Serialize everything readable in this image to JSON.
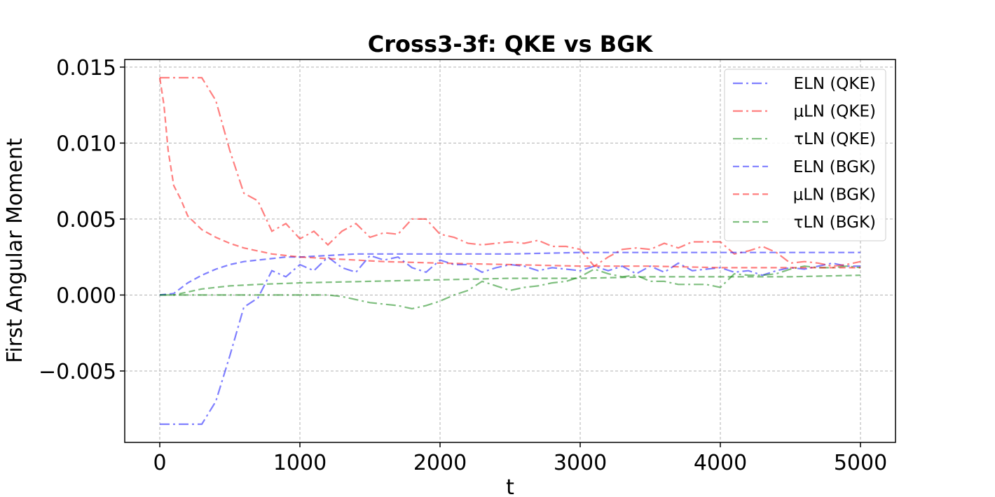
{
  "chart_data": {
    "type": "line",
    "title": "Cross3-3f: QKE vs BGK",
    "xlabel": "t",
    "ylabel": "First Angular Moment",
    "xlim": [
      -250,
      5250
    ],
    "ylim": [
      -0.0097,
      0.0155
    ],
    "x_ticks": [
      0,
      1000,
      2000,
      3000,
      4000,
      5000
    ],
    "x_tick_labels": [
      "0",
      "1000",
      "2000",
      "3000",
      "4000",
      "5000"
    ],
    "y_ticks": [
      -0.005,
      0.0,
      0.005,
      0.01,
      0.015
    ],
    "y_tick_labels": [
      "−0.005",
      "0.000",
      "0.005",
      "0.010",
      "0.015"
    ],
    "grid": true,
    "legend_position": "top-right",
    "series": [
      {
        "name": "ELN (QKE)",
        "color": "#0000ff",
        "style": "dashdot",
        "x": [
          0,
          100,
          200,
          300,
          400,
          500,
          600,
          700,
          800,
          900,
          1000,
          1100,
          1200,
          1300,
          1400,
          1500,
          1600,
          1700,
          1800,
          1900,
          2000,
          2100,
          2200,
          2300,
          2400,
          2500,
          2600,
          2700,
          2800,
          2900,
          3000,
          3100,
          3200,
          3300,
          3400,
          3500,
          3600,
          3700,
          3800,
          3900,
          4000,
          4100,
          4200,
          4300,
          4400,
          4500,
          4600,
          4700,
          4800,
          4900,
          5000
        ],
        "y": [
          -0.0085,
          -0.0085,
          -0.0085,
          -0.0085,
          -0.007,
          -0.004,
          -0.0008,
          -0.0002,
          0.0016,
          0.0012,
          0.002,
          0.0016,
          0.0025,
          0.0018,
          0.0015,
          0.0026,
          0.0023,
          0.0025,
          0.0018,
          0.0015,
          0.0023,
          0.002,
          0.002,
          0.0015,
          0.0018,
          0.002,
          0.0019,
          0.0016,
          0.0018,
          0.0017,
          0.0016,
          0.0019,
          0.0016,
          0.0019,
          0.0014,
          0.0019,
          0.0015,
          0.0021,
          0.0016,
          0.0017,
          0.0018,
          0.0015,
          0.0016,
          0.0013,
          0.0016,
          0.0018,
          0.0017,
          0.0019,
          0.0021,
          0.0019,
          0.0019
        ]
      },
      {
        "name": "μLN (QKE)",
        "color": "#ff0000",
        "style": "dashdot",
        "x": [
          0,
          100,
          200,
          300,
          400,
          500,
          600,
          700,
          800,
          900,
          1000,
          1100,
          1200,
          1300,
          1400,
          1500,
          1600,
          1700,
          1800,
          1900,
          2000,
          2100,
          2200,
          2300,
          2400,
          2500,
          2600,
          2700,
          2800,
          2900,
          3000,
          3100,
          3200,
          3300,
          3400,
          3500,
          3600,
          3700,
          3800,
          3900,
          4000,
          4100,
          4200,
          4300,
          4400,
          4500,
          4600,
          4700,
          4800,
          4900,
          5000
        ],
        "y": [
          0.0143,
          0.0143,
          0.0143,
          0.0143,
          0.0128,
          0.0095,
          0.0067,
          0.0062,
          0.0042,
          0.0047,
          0.0037,
          0.0042,
          0.0033,
          0.0042,
          0.0047,
          0.0038,
          0.0041,
          0.004,
          0.005,
          0.005,
          0.004,
          0.0038,
          0.0034,
          0.0033,
          0.0034,
          0.0035,
          0.0034,
          0.0036,
          0.0032,
          0.0032,
          0.003,
          0.0019,
          0.0025,
          0.003,
          0.0031,
          0.003,
          0.0034,
          0.0031,
          0.0035,
          0.0035,
          0.0035,
          0.0027,
          0.0029,
          0.0032,
          0.0028,
          0.0021,
          0.0022,
          0.0021,
          0.0019,
          0.002,
          0.0022
        ]
      },
      {
        "name": "τLN (QKE)",
        "color": "#008000",
        "style": "dashdot",
        "x": [
          0,
          100,
          200,
          300,
          400,
          500,
          600,
          700,
          800,
          900,
          1000,
          1100,
          1200,
          1300,
          1400,
          1500,
          1600,
          1700,
          1800,
          1900,
          2000,
          2100,
          2200,
          2300,
          2400,
          2500,
          2600,
          2700,
          2800,
          2900,
          3000,
          3100,
          3200,
          3300,
          3400,
          3500,
          3600,
          3700,
          3800,
          3900,
          4000,
          4100,
          4200,
          4300,
          4400,
          4500,
          4600,
          4700,
          4800,
          4900,
          5000
        ],
        "y": [
          0.0,
          0.0,
          0.0,
          0.0,
          0.0,
          0.0,
          0.0,
          0.0,
          0.0,
          0.0,
          0.0,
          0.0,
          0.0,
          -0.0001,
          -0.0003,
          -0.0005,
          -0.0006,
          -0.0007,
          -0.0009,
          -0.0007,
          -0.0004,
          0.0,
          0.0003,
          0.0009,
          0.0006,
          0.0003,
          0.0005,
          0.0006,
          0.0008,
          0.0009,
          0.0012,
          0.0017,
          0.0014,
          0.0012,
          0.0013,
          0.0009,
          0.0009,
          0.0007,
          0.0007,
          0.0007,
          0.0005,
          0.0014,
          0.0013,
          0.0013,
          0.0014,
          0.0017,
          0.0019,
          0.0018,
          0.0018,
          0.0019,
          0.0018
        ]
      },
      {
        "name": "ELN (BGK)",
        "color": "#0000ff",
        "style": "dashed",
        "x": [
          0,
          100,
          200,
          300,
          400,
          500,
          600,
          700,
          800,
          900,
          1000,
          1200,
          1400,
          1600,
          1800,
          2000,
          2500,
          3000,
          3500,
          4000,
          4500,
          5000
        ],
        "y": [
          0.0,
          0.0001,
          0.0008,
          0.0013,
          0.0017,
          0.002,
          0.0022,
          0.0023,
          0.0024,
          0.0025,
          0.0025,
          0.0026,
          0.0027,
          0.0027,
          0.0027,
          0.0027,
          0.0027,
          0.0028,
          0.0028,
          0.0028,
          0.0028,
          0.0028
        ]
      },
      {
        "name": "μLN (BGK)",
        "color": "#ff0000",
        "style": "dashed",
        "x": [
          0,
          30,
          60,
          100,
          150,
          200,
          300,
          400,
          500,
          600,
          700,
          800,
          1000,
          1200,
          1400,
          1600,
          2000,
          2500,
          3000,
          3500,
          4000,
          4500,
          5000
        ],
        "y": [
          0.0143,
          0.0125,
          0.0095,
          0.0072,
          0.0063,
          0.0052,
          0.0043,
          0.0038,
          0.0034,
          0.0031,
          0.0029,
          0.0027,
          0.0025,
          0.0024,
          0.0023,
          0.0022,
          0.0021,
          0.002,
          0.0019,
          0.0019,
          0.0018,
          0.0018,
          0.0018
        ]
      },
      {
        "name": "τLN (BGK)",
        "color": "#008000",
        "style": "dashed",
        "x": [
          0,
          100,
          200,
          300,
          400,
          500,
          700,
          1000,
          1500,
          2000,
          2500,
          3000,
          3500,
          4000,
          4500,
          5000
        ],
        "y": [
          0.0,
          0.0,
          0.0002,
          0.0004,
          0.0005,
          0.0006,
          0.0007,
          0.0008,
          0.0009,
          0.001,
          0.0011,
          0.0011,
          0.0012,
          0.0012,
          0.0012,
          0.0013
        ]
      }
    ]
  }
}
